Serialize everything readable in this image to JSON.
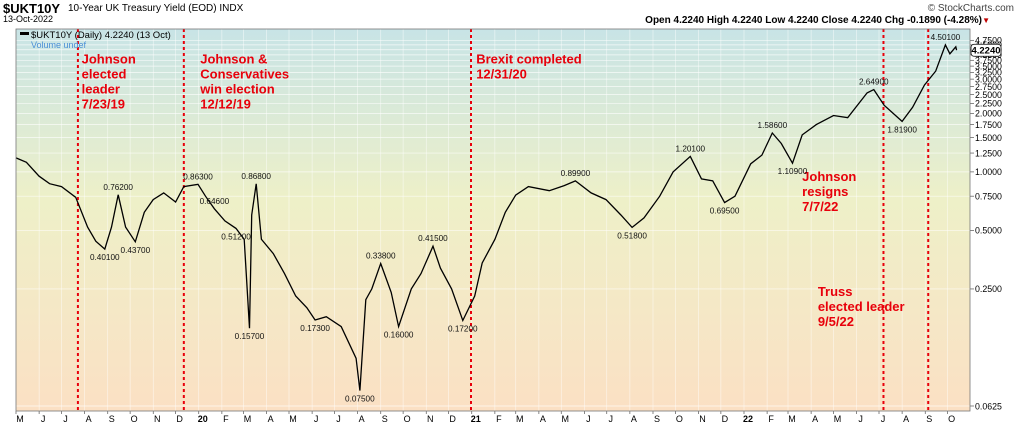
{
  "header": {
    "ticker": "$UKT10Y",
    "description": "10-Year UK Treasury Yield (EOD)",
    "index_tag": "INDX",
    "date": "13-Oct-2022",
    "source": "© StockCharts.com",
    "ohlc": "Open 4.2240  High 4.2240  Low 4.2240  Close 4.2240  Chg -0.1890 (-4.28%)"
  },
  "legend": {
    "line1": "$UKT10Y (Daily) 4.2240 (13 Oct)",
    "line2": "Volume undef"
  },
  "colors": {
    "line": "#000000",
    "event_line": "#e8000b",
    "annotation": "#e8000b",
    "bg_top": "#c8e4e6",
    "bg_mid": "#eef0c8",
    "bg_bottom": "#fbe0c4"
  },
  "chart_data": {
    "type": "line",
    "title": "$UKT10Y 10-Year UK Treasury Yield (EOD)",
    "y_scale": "log",
    "ylim": [
      0.0625,
      5.0
    ],
    "y_ticks": [
      "4.7500",
      "4.5000",
      "4.2500",
      "4.0000",
      "3.7500",
      "3.5000",
      "3.2500",
      "3.0000",
      "2.7500",
      "2.5000",
      "2.2500",
      "2.0000",
      "1.7500",
      "1.5000",
      "1.2500",
      "1.0000",
      "0.7500",
      "0.5000",
      "0.2500",
      "0.0625"
    ],
    "last_value_label": "4.2240",
    "x_start": "2019-05-01",
    "x_end": "2022-10-31",
    "x_tick_labels": [
      {
        "date": "2019-05-01",
        "label": "M"
      },
      {
        "date": "2019-06-01",
        "label": "J"
      },
      {
        "date": "2019-07-01",
        "label": "J"
      },
      {
        "date": "2019-08-01",
        "label": "A"
      },
      {
        "date": "2019-09-01",
        "label": "S"
      },
      {
        "date": "2019-10-01",
        "label": "O"
      },
      {
        "date": "2019-11-01",
        "label": "N"
      },
      {
        "date": "2019-12-01",
        "label": "D"
      },
      {
        "date": "2020-01-01",
        "label": "20"
      },
      {
        "date": "2020-02-01",
        "label": "F"
      },
      {
        "date": "2020-03-01",
        "label": "M"
      },
      {
        "date": "2020-04-01",
        "label": "A"
      },
      {
        "date": "2020-05-01",
        "label": "M"
      },
      {
        "date": "2020-06-01",
        "label": "J"
      },
      {
        "date": "2020-07-01",
        "label": "J"
      },
      {
        "date": "2020-08-01",
        "label": "A"
      },
      {
        "date": "2020-09-01",
        "label": "S"
      },
      {
        "date": "2020-10-01",
        "label": "O"
      },
      {
        "date": "2020-11-01",
        "label": "N"
      },
      {
        "date": "2020-12-01",
        "label": "D"
      },
      {
        "date": "2021-01-01",
        "label": "21"
      },
      {
        "date": "2021-02-01",
        "label": "F"
      },
      {
        "date": "2021-03-01",
        "label": "M"
      },
      {
        "date": "2021-04-01",
        "label": "A"
      },
      {
        "date": "2021-05-01",
        "label": "M"
      },
      {
        "date": "2021-06-01",
        "label": "J"
      },
      {
        "date": "2021-07-01",
        "label": "J"
      },
      {
        "date": "2021-08-01",
        "label": "A"
      },
      {
        "date": "2021-09-01",
        "label": "S"
      },
      {
        "date": "2021-10-01",
        "label": "O"
      },
      {
        "date": "2021-11-01",
        "label": "N"
      },
      {
        "date": "2021-12-01",
        "label": "D"
      },
      {
        "date": "2022-01-01",
        "label": "22"
      },
      {
        "date": "2022-02-01",
        "label": "F"
      },
      {
        "date": "2022-03-01",
        "label": "M"
      },
      {
        "date": "2022-04-01",
        "label": "A"
      },
      {
        "date": "2022-05-01",
        "label": "M"
      },
      {
        "date": "2022-06-01",
        "label": "J"
      },
      {
        "date": "2022-07-01",
        "label": "J"
      },
      {
        "date": "2022-08-01",
        "label": "A"
      },
      {
        "date": "2022-09-01",
        "label": "S"
      },
      {
        "date": "2022-10-01",
        "label": "O"
      }
    ],
    "series": [
      {
        "points": [
          [
            "2019-05-01",
            1.18
          ],
          [
            "2019-05-15",
            1.12
          ],
          [
            "2019-06-01",
            0.95
          ],
          [
            "2019-06-15",
            0.87
          ],
          [
            "2019-07-01",
            0.84
          ],
          [
            "2019-07-20",
            0.74
          ],
          [
            "2019-08-05",
            0.52
          ],
          [
            "2019-08-16",
            0.44
          ],
          [
            "2019-08-28",
            0.401
          ],
          [
            "2019-09-06",
            0.52
          ],
          [
            "2019-09-15",
            0.762
          ],
          [
            "2019-09-25",
            0.52
          ],
          [
            "2019-10-08",
            0.437
          ],
          [
            "2019-10-20",
            0.62
          ],
          [
            "2019-11-01",
            0.72
          ],
          [
            "2019-11-15",
            0.78
          ],
          [
            "2019-12-01",
            0.7
          ],
          [
            "2019-12-12",
            0.84
          ],
          [
            "2019-12-31",
            0.863
          ],
          [
            "2020-01-10",
            0.75
          ],
          [
            "2020-01-22",
            0.646
          ],
          [
            "2020-02-05",
            0.56
          ],
          [
            "2020-02-20",
            0.512
          ],
          [
            "2020-03-02",
            0.45
          ],
          [
            "2020-03-09",
            0.157
          ],
          [
            "2020-03-12",
            0.6
          ],
          [
            "2020-03-18",
            0.868
          ],
          [
            "2020-03-25",
            0.45
          ],
          [
            "2020-04-10",
            0.38
          ],
          [
            "2020-04-25",
            0.3
          ],
          [
            "2020-05-10",
            0.23
          ],
          [
            "2020-05-25",
            0.2
          ],
          [
            "2020-06-05",
            0.173
          ],
          [
            "2020-06-20",
            0.18
          ],
          [
            "2020-07-10",
            0.16
          ],
          [
            "2020-07-30",
            0.11
          ],
          [
            "2020-08-04",
            0.075
          ],
          [
            "2020-08-12",
            0.22
          ],
          [
            "2020-08-20",
            0.25
          ],
          [
            "2020-09-01",
            0.338
          ],
          [
            "2020-09-15",
            0.24
          ],
          [
            "2020-09-25",
            0.16
          ],
          [
            "2020-10-12",
            0.25
          ],
          [
            "2020-10-25",
            0.3
          ],
          [
            "2020-11-10",
            0.415
          ],
          [
            "2020-11-20",
            0.32
          ],
          [
            "2020-12-05",
            0.25
          ],
          [
            "2020-12-20",
            0.172
          ],
          [
            "2021-01-05",
            0.23
          ],
          [
            "2021-01-15",
            0.34
          ],
          [
            "2021-02-01",
            0.45
          ],
          [
            "2021-02-15",
            0.62
          ],
          [
            "2021-03-01",
            0.76
          ],
          [
            "2021-03-18",
            0.84
          ],
          [
            "2021-04-15",
            0.8
          ],
          [
            "2021-05-05",
            0.85
          ],
          [
            "2021-05-20",
            0.899
          ],
          [
            "2021-06-10",
            0.78
          ],
          [
            "2021-06-30",
            0.72
          ],
          [
            "2021-07-20",
            0.6
          ],
          [
            "2021-08-04",
            0.518
          ],
          [
            "2021-08-20",
            0.58
          ],
          [
            "2021-09-10",
            0.75
          ],
          [
            "2021-09-28",
            1.0
          ],
          [
            "2021-10-21",
            1.201
          ],
          [
            "2021-11-05",
            0.92
          ],
          [
            "2021-11-20",
            0.9
          ],
          [
            "2021-12-06",
            0.695
          ],
          [
            "2021-12-20",
            0.75
          ],
          [
            "2022-01-10",
            1.1
          ],
          [
            "2022-01-25",
            1.22
          ],
          [
            "2022-02-08",
            1.586
          ],
          [
            "2022-02-20",
            1.4
          ],
          [
            "2022-03-07",
            1.109
          ],
          [
            "2022-03-20",
            1.55
          ],
          [
            "2022-04-08",
            1.75
          ],
          [
            "2022-05-01",
            1.95
          ],
          [
            "2022-05-20",
            1.9
          ],
          [
            "2022-06-15",
            2.55
          ],
          [
            "2022-06-24",
            2.649
          ],
          [
            "2022-07-08",
            2.2
          ],
          [
            "2022-08-01",
            1.819
          ],
          [
            "2022-08-15",
            2.15
          ],
          [
            "2022-08-31",
            2.8
          ],
          [
            "2022-09-15",
            3.3
          ],
          [
            "2022-09-28",
            4.501
          ],
          [
            "2022-10-04",
            4.05
          ],
          [
            "2022-10-12",
            4.4
          ],
          [
            "2022-10-13",
            4.224
          ]
        ]
      }
    ],
    "value_labels": [
      {
        "date": "2019-08-28",
        "value": 0.401,
        "text": "0.40100",
        "pos": "below"
      },
      {
        "date": "2019-09-15",
        "value": 0.762,
        "text": "0.76200",
        "pos": "above"
      },
      {
        "date": "2019-10-08",
        "value": 0.437,
        "text": "0.43700",
        "pos": "below"
      },
      {
        "date": "2019-12-31",
        "value": 0.863,
        "text": "0.86300",
        "pos": "above"
      },
      {
        "date": "2020-01-22",
        "value": 0.646,
        "text": "0.64600",
        "pos": "above"
      },
      {
        "date": "2020-02-20",
        "value": 0.512,
        "text": "0.51200",
        "pos": "below"
      },
      {
        "date": "2020-03-09",
        "value": 0.157,
        "text": "0.15700",
        "pos": "below"
      },
      {
        "date": "2020-03-18",
        "value": 0.868,
        "text": "0.86800",
        "pos": "above"
      },
      {
        "date": "2020-06-05",
        "value": 0.173,
        "text": "0.17300",
        "pos": "below"
      },
      {
        "date": "2020-08-04",
        "value": 0.075,
        "text": "0.07500",
        "pos": "below"
      },
      {
        "date": "2020-09-01",
        "value": 0.338,
        "text": "0.33800",
        "pos": "above"
      },
      {
        "date": "2020-09-25",
        "value": 0.16,
        "text": "0.16000",
        "pos": "below"
      },
      {
        "date": "2020-11-10",
        "value": 0.415,
        "text": "0.41500",
        "pos": "above"
      },
      {
        "date": "2020-12-20",
        "value": 0.172,
        "text": "0.17200",
        "pos": "below"
      },
      {
        "date": "2021-05-20",
        "value": 0.899,
        "text": "0.89900",
        "pos": "above"
      },
      {
        "date": "2021-08-04",
        "value": 0.518,
        "text": "0.51800",
        "pos": "below"
      },
      {
        "date": "2021-10-21",
        "value": 1.201,
        "text": "1.20100",
        "pos": "above"
      },
      {
        "date": "2021-12-06",
        "value": 0.695,
        "text": "0.69500",
        "pos": "below"
      },
      {
        "date": "2022-02-08",
        "value": 1.586,
        "text": "1.58600",
        "pos": "above"
      },
      {
        "date": "2022-03-07",
        "value": 1.109,
        "text": "1.10900",
        "pos": "below"
      },
      {
        "date": "2022-06-24",
        "value": 2.649,
        "text": "2.64900",
        "pos": "above"
      },
      {
        "date": "2022-08-01",
        "value": 1.819,
        "text": "1.81900",
        "pos": "below"
      },
      {
        "date": "2022-09-28",
        "value": 4.501,
        "text": "4.50100",
        "pos": "above"
      }
    ],
    "events": [
      {
        "date": "2019-07-23",
        "lines": [
          "Johnson",
          "elected",
          "leader",
          "7/23/19"
        ],
        "label_date": "2019-07-28",
        "label_value": 3.6
      },
      {
        "date": "2019-12-12",
        "lines": [
          "Johnson &",
          "Conservatives",
          "win election",
          "12/12/19"
        ],
        "label_date": "2020-01-03",
        "label_value": 3.6
      },
      {
        "date": "2020-12-31",
        "lines": [
          "Brexit completed",
          "12/31/20"
        ],
        "label_date": "2021-01-07",
        "label_value": 3.6
      },
      {
        "date": "2022-07-07",
        "lines": [
          "Johnson",
          "resigns",
          "7/7/22"
        ],
        "label_date": "2022-03-20",
        "label_value": 0.9
      },
      {
        "date": "2022-09-05",
        "lines": [
          "Truss",
          "elected leader",
          "9/5/22"
        ],
        "label_date": "2022-04-10",
        "label_value": 0.23
      }
    ]
  }
}
